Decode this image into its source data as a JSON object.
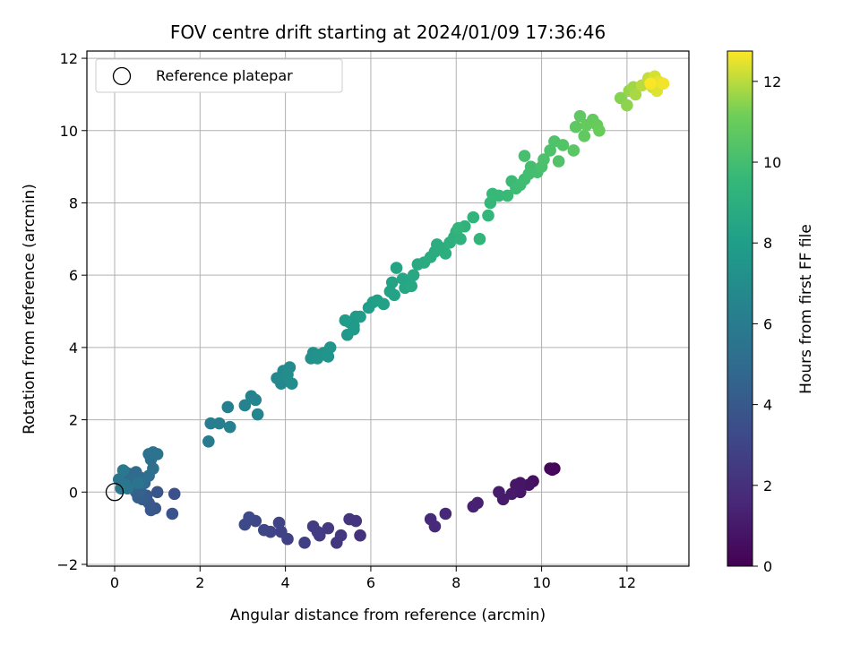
{
  "chart_data": {
    "type": "scatter",
    "title": "FOV centre drift starting at 2024/01/09 17:36:46",
    "xlabel": "Angular distance from reference (arcmin)",
    "ylabel": "Rotation from reference (arcmin)",
    "xlim": [
      -0.65,
      13.45
    ],
    "ylim": [
      -2.05,
      12.2
    ],
    "xticks": [
      0,
      2,
      4,
      6,
      8,
      10,
      12
    ],
    "yticks": [
      -2,
      0,
      2,
      4,
      6,
      8,
      10,
      12
    ],
    "grid": true,
    "legend": {
      "placement": "top-left",
      "entries": [
        "Reference platepar"
      ]
    },
    "reference_point": {
      "x": 0,
      "y": 0
    },
    "colorbar": {
      "label": "Hours from first FF file",
      "min": 0,
      "max": 12.75,
      "ticks": [
        0,
        2,
        4,
        6,
        8,
        10,
        12
      ],
      "colormap": "viridis"
    },
    "points": [
      [
        10.3,
        0.65,
        0.2
      ],
      [
        10.2,
        0.65,
        0.25
      ],
      [
        10.25,
        0.62,
        0.3
      ],
      [
        9.8,
        0.3,
        0.6
      ],
      [
        9.7,
        0.2,
        0.7
      ],
      [
        9.5,
        0.25,
        0.8
      ],
      [
        9.4,
        0.2,
        0.85
      ],
      [
        9.5,
        0.0,
        0.9
      ],
      [
        9.3,
        -0.05,
        1.0
      ],
      [
        9.1,
        -0.2,
        1.05
      ],
      [
        9.0,
        0.0,
        1.1
      ],
      [
        8.5,
        -0.3,
        1.3
      ],
      [
        8.4,
        -0.4,
        1.35
      ],
      [
        7.75,
        -0.6,
        1.6
      ],
      [
        7.5,
        -0.95,
        1.7
      ],
      [
        7.4,
        -0.75,
        1.75
      ],
      [
        5.75,
        -1.2,
        2.1
      ],
      [
        5.65,
        -0.8,
        2.15
      ],
      [
        5.5,
        -0.75,
        2.2
      ],
      [
        5.3,
        -1.2,
        2.3
      ],
      [
        5.2,
        -1.4,
        2.35
      ],
      [
        5.0,
        -1.0,
        2.4
      ],
      [
        4.8,
        -1.2,
        2.5
      ],
      [
        4.75,
        -1.1,
        2.55
      ],
      [
        4.65,
        -0.95,
        2.6
      ],
      [
        4.45,
        -1.4,
        2.7
      ],
      [
        4.05,
        -1.3,
        2.8
      ],
      [
        3.9,
        -1.1,
        2.85
      ],
      [
        3.85,
        -0.85,
        2.9
      ],
      [
        3.65,
        -1.1,
        3.0
      ],
      [
        3.5,
        -1.05,
        3.05
      ],
      [
        3.3,
        -0.8,
        3.15
      ],
      [
        3.15,
        -0.7,
        3.2
      ],
      [
        3.05,
        -0.9,
        3.25
      ],
      [
        1.4,
        -0.05,
        3.6
      ],
      [
        1.35,
        -0.6,
        3.7
      ],
      [
        1.0,
        0.0,
        3.8
      ],
      [
        0.95,
        -0.45,
        3.85
      ],
      [
        0.85,
        -0.5,
        3.9
      ],
      [
        0.8,
        -0.3,
        4.0
      ],
      [
        0.75,
        -0.1,
        4.1
      ],
      [
        0.65,
        -0.2,
        4.2
      ],
      [
        0.55,
        -0.15,
        4.3
      ],
      [
        0.5,
        0.0,
        4.35
      ],
      [
        0.45,
        0.1,
        4.4
      ],
      [
        0.6,
        0.05,
        4.5
      ],
      [
        0.7,
        0.25,
        4.55
      ],
      [
        0.4,
        0.25,
        4.6
      ],
      [
        0.35,
        0.4,
        4.7
      ],
      [
        0.3,
        0.3,
        4.75
      ],
      [
        0.2,
        0.4,
        4.8
      ],
      [
        0.25,
        0.55,
        4.85
      ],
      [
        0.35,
        0.5,
        4.9
      ],
      [
        0.5,
        0.55,
        4.95
      ],
      [
        0.6,
        0.4,
        5.0
      ],
      [
        0.45,
        0.35,
        5.05
      ],
      [
        0.65,
        0.25,
        5.1
      ],
      [
        0.8,
        0.45,
        5.15
      ],
      [
        0.9,
        0.65,
        5.2
      ],
      [
        0.85,
        0.9,
        5.3
      ],
      [
        0.8,
        1.05,
        5.35
      ],
      [
        0.9,
        1.1,
        5.4
      ],
      [
        1.0,
        1.05,
        5.45
      ],
      [
        0.55,
        0.25,
        5.5
      ],
      [
        0.3,
        0.1,
        5.55
      ],
      [
        0.1,
        0.35,
        5.6
      ],
      [
        0.25,
        0.2,
        5.65
      ],
      [
        0.15,
        0.1,
        5.7
      ],
      [
        0.2,
        0.6,
        5.75
      ],
      [
        2.2,
        1.4,
        6.0
      ],
      [
        2.25,
        1.9,
        6.05
      ],
      [
        2.45,
        1.9,
        6.1
      ],
      [
        2.65,
        2.35,
        6.2
      ],
      [
        2.7,
        1.8,
        6.25
      ],
      [
        3.05,
        2.4,
        6.4
      ],
      [
        3.2,
        2.65,
        6.45
      ],
      [
        3.3,
        2.55,
        6.5
      ],
      [
        3.35,
        2.15,
        6.55
      ],
      [
        3.8,
        3.15,
        6.7
      ],
      [
        3.9,
        3.0,
        6.75
      ],
      [
        3.95,
        3.35,
        6.8
      ],
      [
        4.0,
        3.2,
        6.85
      ],
      [
        4.1,
        3.45,
        6.9
      ],
      [
        4.15,
        3.0,
        6.95
      ],
      [
        4.05,
        3.25,
        7.0
      ],
      [
        4.6,
        3.7,
        7.15
      ],
      [
        4.65,
        3.85,
        7.2
      ],
      [
        4.8,
        3.8,
        7.25
      ],
      [
        4.9,
        3.85,
        7.3
      ],
      [
        4.75,
        3.7,
        7.35
      ],
      [
        5.0,
        3.75,
        7.4
      ],
      [
        5.05,
        4.0,
        7.45
      ],
      [
        5.45,
        4.35,
        7.6
      ],
      [
        5.5,
        4.7,
        7.65
      ],
      [
        5.6,
        4.6,
        7.7
      ],
      [
        5.65,
        4.85,
        7.75
      ],
      [
        5.6,
        4.5,
        7.8
      ],
      [
        5.75,
        4.85,
        7.85
      ],
      [
        5.4,
        4.75,
        7.9
      ],
      [
        5.95,
        5.1,
        8.0
      ],
      [
        6.05,
        5.25,
        8.05
      ],
      [
        6.15,
        5.3,
        8.1
      ],
      [
        6.3,
        5.2,
        8.15
      ],
      [
        6.45,
        5.55,
        8.2
      ],
      [
        6.5,
        5.8,
        8.25
      ],
      [
        6.55,
        5.45,
        8.3
      ],
      [
        6.6,
        6.2,
        8.35
      ],
      [
        6.75,
        5.9,
        8.4
      ],
      [
        6.8,
        5.65,
        8.45
      ],
      [
        6.9,
        5.85,
        8.5
      ],
      [
        7.0,
        6.0,
        8.55
      ],
      [
        6.95,
        5.7,
        8.6
      ],
      [
        7.1,
        6.3,
        8.7
      ],
      [
        7.25,
        6.35,
        8.75
      ],
      [
        7.4,
        6.5,
        8.8
      ],
      [
        7.5,
        6.65,
        8.85
      ],
      [
        7.55,
        6.85,
        8.9
      ],
      [
        7.65,
        6.75,
        8.95
      ],
      [
        7.75,
        6.6,
        9.0
      ],
      [
        7.85,
        6.9,
        9.05
      ],
      [
        7.95,
        7.05,
        9.1
      ],
      [
        8.0,
        7.2,
        9.15
      ],
      [
        8.1,
        7.0,
        9.2
      ],
      [
        8.2,
        7.35,
        9.25
      ],
      [
        8.4,
        7.6,
        9.3
      ],
      [
        8.55,
        7.0,
        9.35
      ],
      [
        8.05,
        7.3,
        9.4
      ],
      [
        8.75,
        7.65,
        9.5
      ],
      [
        8.8,
        8.0,
        9.55
      ],
      [
        8.85,
        8.25,
        9.6
      ],
      [
        9.0,
        8.2,
        9.65
      ],
      [
        9.2,
        8.2,
        9.7
      ],
      [
        9.3,
        8.6,
        9.75
      ],
      [
        9.4,
        8.4,
        9.8
      ],
      [
        9.5,
        8.5,
        9.85
      ],
      [
        9.6,
        8.65,
        9.9
      ],
      [
        9.7,
        8.8,
        9.95
      ],
      [
        9.75,
        9.0,
        10.0
      ],
      [
        9.9,
        8.85,
        10.05
      ],
      [
        9.6,
        9.3,
        10.1
      ],
      [
        10.0,
        9.0,
        10.15
      ],
      [
        10.05,
        9.2,
        10.2
      ],
      [
        10.2,
        9.45,
        10.25
      ],
      [
        10.3,
        9.7,
        10.3
      ],
      [
        10.4,
        9.15,
        10.35
      ],
      [
        10.5,
        9.6,
        10.4
      ],
      [
        10.75,
        9.45,
        10.6
      ],
      [
        10.8,
        10.1,
        10.7
      ],
      [
        10.9,
        10.4,
        10.75
      ],
      [
        11.0,
        9.85,
        10.8
      ],
      [
        11.05,
        10.15,
        10.85
      ],
      [
        11.2,
        10.3,
        10.9
      ],
      [
        11.3,
        10.15,
        10.95
      ],
      [
        11.35,
        10.0,
        11.0
      ],
      [
        11.85,
        10.9,
        11.4
      ],
      [
        12.0,
        10.7,
        11.5
      ],
      [
        12.05,
        11.1,
        11.6
      ],
      [
        12.15,
        11.2,
        11.7
      ],
      [
        12.2,
        11.0,
        11.8
      ],
      [
        12.35,
        11.25,
        12.0
      ],
      [
        12.5,
        11.45,
        12.1
      ],
      [
        12.6,
        11.2,
        12.2
      ],
      [
        12.65,
        11.5,
        12.3
      ],
      [
        12.7,
        11.1,
        12.4
      ],
      [
        12.75,
        11.35,
        12.5
      ],
      [
        12.85,
        11.3,
        12.6
      ],
      [
        12.55,
        11.3,
        12.7
      ]
    ]
  }
}
